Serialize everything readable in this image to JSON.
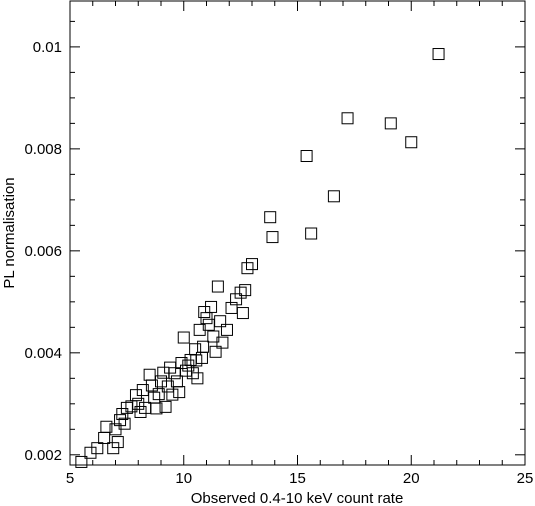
{
  "chart_data": {
    "type": "scatter",
    "title": "",
    "xlabel": "Observed 0.4-10 keV count rate",
    "ylabel": "PL normalisation",
    "xlim": [
      5,
      25
    ],
    "ylim": [
      0.0018,
      0.0109
    ],
    "xticks": [
      5,
      10,
      15,
      20,
      25
    ],
    "xtick_labels": [
      "5",
      "10",
      "15",
      "20",
      "25"
    ],
    "yticks": [
      0.002,
      0.004,
      0.006,
      0.008,
      0.01
    ],
    "ytick_labels": [
      "0.002",
      "0.004",
      "0.006",
      "0.008",
      "0.01"
    ],
    "grid": false,
    "marker": "open-square",
    "series": [
      {
        "points": [
          [
            5.5,
            0.00186
          ],
          [
            5.9,
            0.00204
          ],
          [
            6.2,
            0.00213
          ],
          [
            6.5,
            0.00233
          ],
          [
            6.6,
            0.00255
          ],
          [
            6.9,
            0.00213
          ],
          [
            7.0,
            0.0025
          ],
          [
            7.1,
            0.00225
          ],
          [
            7.2,
            0.00268
          ],
          [
            7.3,
            0.0028
          ],
          [
            7.4,
            0.00261
          ],
          [
            7.5,
            0.00292
          ],
          [
            7.7,
            0.00295
          ],
          [
            7.9,
            0.00317
          ],
          [
            8.0,
            0.003
          ],
          [
            8.1,
            0.00284
          ],
          [
            8.2,
            0.00327
          ],
          [
            8.3,
            0.00292
          ],
          [
            8.5,
            0.00357
          ],
          [
            8.6,
            0.00336
          ],
          [
            8.7,
            0.00312
          ],
          [
            8.8,
            0.00291
          ],
          [
            8.9,
            0.00319
          ],
          [
            9.0,
            0.00344
          ],
          [
            9.1,
            0.00361
          ],
          [
            9.2,
            0.00294
          ],
          [
            9.3,
            0.00334
          ],
          [
            9.4,
            0.00371
          ],
          [
            9.5,
            0.00318
          ],
          [
            9.6,
            0.0036
          ],
          [
            9.7,
            0.00344
          ],
          [
            9.8,
            0.00323
          ],
          [
            9.9,
            0.0038
          ],
          [
            10.0,
            0.0043
          ],
          [
            10.1,
            0.00365
          ],
          [
            10.2,
            0.00375
          ],
          [
            10.3,
            0.00386
          ],
          [
            10.4,
            0.0036
          ],
          [
            10.5,
            0.00407
          ],
          [
            10.55,
            0.00385
          ],
          [
            10.6,
            0.0035
          ],
          [
            10.7,
            0.00445
          ],
          [
            10.8,
            0.0039
          ],
          [
            10.85,
            0.00412
          ],
          [
            10.9,
            0.0048
          ],
          [
            11.0,
            0.00468
          ],
          [
            11.1,
            0.00455
          ],
          [
            11.2,
            0.0049
          ],
          [
            11.3,
            0.00432
          ],
          [
            11.4,
            0.00402
          ],
          [
            11.5,
            0.0053
          ],
          [
            11.6,
            0.00462
          ],
          [
            11.7,
            0.0042
          ],
          [
            11.9,
            0.00445
          ],
          [
            12.1,
            0.00488
          ],
          [
            12.3,
            0.00505
          ],
          [
            12.5,
            0.00518
          ],
          [
            12.6,
            0.00478
          ],
          [
            12.7,
            0.00523
          ],
          [
            12.8,
            0.00566
          ],
          [
            13.0,
            0.00574
          ],
          [
            13.8,
            0.00666
          ],
          [
            13.9,
            0.00627
          ],
          [
            15.4,
            0.00786
          ],
          [
            15.6,
            0.00634
          ],
          [
            16.6,
            0.00707
          ],
          [
            17.2,
            0.0086
          ],
          [
            19.1,
            0.0085
          ],
          [
            20.0,
            0.00813
          ],
          [
            21.2,
            0.00986
          ]
        ]
      }
    ]
  }
}
